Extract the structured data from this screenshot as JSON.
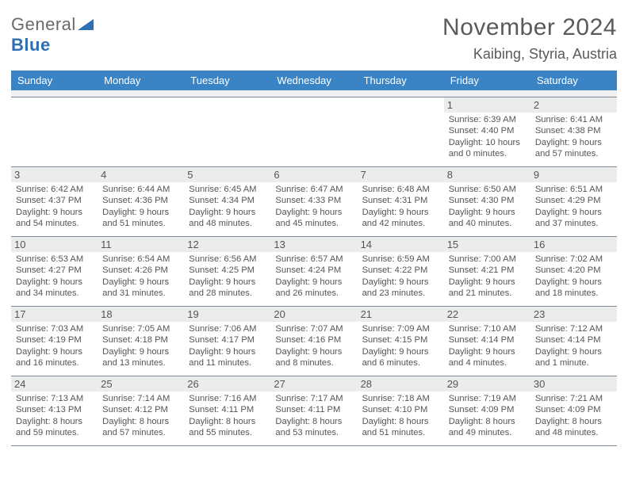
{
  "brand": {
    "part1": "General",
    "part2": "Blue"
  },
  "title": "November 2024",
  "location": "Kaibing, Styria, Austria",
  "colors": {
    "header_bg": "#3a84c6",
    "header_text": "#ffffff",
    "daynum_bg": "#ececec",
    "rule": "#7a8ca0",
    "text": "#555555",
    "logo_gray": "#6a6a6a",
    "logo_blue": "#2f6fb3",
    "page_bg": "#ffffff"
  },
  "typography": {
    "title_fontsize": 30,
    "location_fontsize": 18,
    "dow_fontsize": 13,
    "daynum_fontsize": 13,
    "body_fontsize": 11.2,
    "logo_fontsize": 22,
    "font_family": "Arial"
  },
  "dow": [
    "Sunday",
    "Monday",
    "Tuesday",
    "Wednesday",
    "Thursday",
    "Friday",
    "Saturday"
  ],
  "weeks": [
    [
      {
        "n": "",
        "sr": "",
        "ss": "",
        "dl": ""
      },
      {
        "n": "",
        "sr": "",
        "ss": "",
        "dl": ""
      },
      {
        "n": "",
        "sr": "",
        "ss": "",
        "dl": ""
      },
      {
        "n": "",
        "sr": "",
        "ss": "",
        "dl": ""
      },
      {
        "n": "",
        "sr": "",
        "ss": "",
        "dl": ""
      },
      {
        "n": "1",
        "sr": "Sunrise: 6:39 AM",
        "ss": "Sunset: 4:40 PM",
        "dl": "Daylight: 10 hours and 0 minutes."
      },
      {
        "n": "2",
        "sr": "Sunrise: 6:41 AM",
        "ss": "Sunset: 4:38 PM",
        "dl": "Daylight: 9 hours and 57 minutes."
      }
    ],
    [
      {
        "n": "3",
        "sr": "Sunrise: 6:42 AM",
        "ss": "Sunset: 4:37 PM",
        "dl": "Daylight: 9 hours and 54 minutes."
      },
      {
        "n": "4",
        "sr": "Sunrise: 6:44 AM",
        "ss": "Sunset: 4:36 PM",
        "dl": "Daylight: 9 hours and 51 minutes."
      },
      {
        "n": "5",
        "sr": "Sunrise: 6:45 AM",
        "ss": "Sunset: 4:34 PM",
        "dl": "Daylight: 9 hours and 48 minutes."
      },
      {
        "n": "6",
        "sr": "Sunrise: 6:47 AM",
        "ss": "Sunset: 4:33 PM",
        "dl": "Daylight: 9 hours and 45 minutes."
      },
      {
        "n": "7",
        "sr": "Sunrise: 6:48 AM",
        "ss": "Sunset: 4:31 PM",
        "dl": "Daylight: 9 hours and 42 minutes."
      },
      {
        "n": "8",
        "sr": "Sunrise: 6:50 AM",
        "ss": "Sunset: 4:30 PM",
        "dl": "Daylight: 9 hours and 40 minutes."
      },
      {
        "n": "9",
        "sr": "Sunrise: 6:51 AM",
        "ss": "Sunset: 4:29 PM",
        "dl": "Daylight: 9 hours and 37 minutes."
      }
    ],
    [
      {
        "n": "10",
        "sr": "Sunrise: 6:53 AM",
        "ss": "Sunset: 4:27 PM",
        "dl": "Daylight: 9 hours and 34 minutes."
      },
      {
        "n": "11",
        "sr": "Sunrise: 6:54 AM",
        "ss": "Sunset: 4:26 PM",
        "dl": "Daylight: 9 hours and 31 minutes."
      },
      {
        "n": "12",
        "sr": "Sunrise: 6:56 AM",
        "ss": "Sunset: 4:25 PM",
        "dl": "Daylight: 9 hours and 28 minutes."
      },
      {
        "n": "13",
        "sr": "Sunrise: 6:57 AM",
        "ss": "Sunset: 4:24 PM",
        "dl": "Daylight: 9 hours and 26 minutes."
      },
      {
        "n": "14",
        "sr": "Sunrise: 6:59 AM",
        "ss": "Sunset: 4:22 PM",
        "dl": "Daylight: 9 hours and 23 minutes."
      },
      {
        "n": "15",
        "sr": "Sunrise: 7:00 AM",
        "ss": "Sunset: 4:21 PM",
        "dl": "Daylight: 9 hours and 21 minutes."
      },
      {
        "n": "16",
        "sr": "Sunrise: 7:02 AM",
        "ss": "Sunset: 4:20 PM",
        "dl": "Daylight: 9 hours and 18 minutes."
      }
    ],
    [
      {
        "n": "17",
        "sr": "Sunrise: 7:03 AM",
        "ss": "Sunset: 4:19 PM",
        "dl": "Daylight: 9 hours and 16 minutes."
      },
      {
        "n": "18",
        "sr": "Sunrise: 7:05 AM",
        "ss": "Sunset: 4:18 PM",
        "dl": "Daylight: 9 hours and 13 minutes."
      },
      {
        "n": "19",
        "sr": "Sunrise: 7:06 AM",
        "ss": "Sunset: 4:17 PM",
        "dl": "Daylight: 9 hours and 11 minutes."
      },
      {
        "n": "20",
        "sr": "Sunrise: 7:07 AM",
        "ss": "Sunset: 4:16 PM",
        "dl": "Daylight: 9 hours and 8 minutes."
      },
      {
        "n": "21",
        "sr": "Sunrise: 7:09 AM",
        "ss": "Sunset: 4:15 PM",
        "dl": "Daylight: 9 hours and 6 minutes."
      },
      {
        "n": "22",
        "sr": "Sunrise: 7:10 AM",
        "ss": "Sunset: 4:14 PM",
        "dl": "Daylight: 9 hours and 4 minutes."
      },
      {
        "n": "23",
        "sr": "Sunrise: 7:12 AM",
        "ss": "Sunset: 4:14 PM",
        "dl": "Daylight: 9 hours and 1 minute."
      }
    ],
    [
      {
        "n": "24",
        "sr": "Sunrise: 7:13 AM",
        "ss": "Sunset: 4:13 PM",
        "dl": "Daylight: 8 hours and 59 minutes."
      },
      {
        "n": "25",
        "sr": "Sunrise: 7:14 AM",
        "ss": "Sunset: 4:12 PM",
        "dl": "Daylight: 8 hours and 57 minutes."
      },
      {
        "n": "26",
        "sr": "Sunrise: 7:16 AM",
        "ss": "Sunset: 4:11 PM",
        "dl": "Daylight: 8 hours and 55 minutes."
      },
      {
        "n": "27",
        "sr": "Sunrise: 7:17 AM",
        "ss": "Sunset: 4:11 PM",
        "dl": "Daylight: 8 hours and 53 minutes."
      },
      {
        "n": "28",
        "sr": "Sunrise: 7:18 AM",
        "ss": "Sunset: 4:10 PM",
        "dl": "Daylight: 8 hours and 51 minutes."
      },
      {
        "n": "29",
        "sr": "Sunrise: 7:19 AM",
        "ss": "Sunset: 4:09 PM",
        "dl": "Daylight: 8 hours and 49 minutes."
      },
      {
        "n": "30",
        "sr": "Sunrise: 7:21 AM",
        "ss": "Sunset: 4:09 PM",
        "dl": "Daylight: 8 hours and 48 minutes."
      }
    ]
  ]
}
